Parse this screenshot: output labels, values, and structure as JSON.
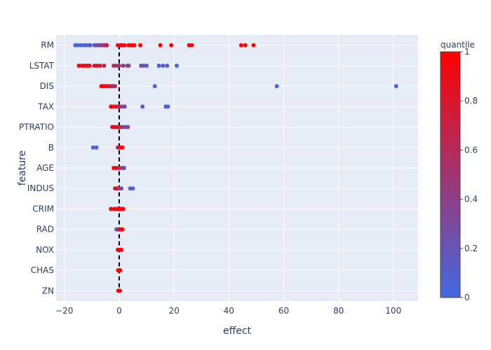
{
  "chart_data": {
    "type": "scatter",
    "xlabel": "effect",
    "ylabel": "feature",
    "xlim": [
      -23,
      109
    ],
    "x_ticks": [
      -20,
      0,
      20,
      40,
      60,
      80,
      100
    ],
    "categories": [
      "RM",
      "LSTAT",
      "DIS",
      "TAX",
      "PTRATIO",
      "B",
      "AGE",
      "INDUS",
      "CRIM",
      "RAD",
      "NOX",
      "CHAS",
      "ZN"
    ],
    "reference_line": {
      "x": 0,
      "style": "dashed",
      "color": "#000000"
    },
    "grid": true,
    "colorbar": {
      "title": "quantile",
      "range": [
        0,
        1
      ],
      "ticks": [
        "0",
        "0.2",
        "0.4",
        "0.6",
        "0.8",
        "1"
      ],
      "low_color": "#4169e1",
      "high_color": "#ff0000"
    },
    "points": [
      {
        "feature": "RM",
        "values": [
          [
            -16,
            0.02
          ],
          [
            -15.3,
            0.04
          ],
          [
            -14.2,
            0.06
          ],
          [
            -13,
            0.07
          ],
          [
            -12,
            0.08
          ],
          [
            -11,
            0.09
          ],
          [
            -10.5,
            0.1
          ],
          [
            -9,
            0.15
          ],
          [
            -8.3,
            0.2
          ],
          [
            -7.6,
            0.25
          ],
          [
            -7,
            0.3
          ],
          [
            -6.2,
            0.4
          ],
          [
            -5.5,
            0.5
          ],
          [
            -5,
            0.6
          ],
          [
            -4.5,
            0.7
          ],
          [
            -0.5,
            0.88
          ],
          [
            0.5,
            0.9
          ],
          [
            1,
            0.92
          ],
          [
            2,
            0.94
          ],
          [
            3.5,
            0.95
          ],
          [
            4.5,
            0.96
          ],
          [
            5.5,
            0.97
          ],
          [
            7.7,
            0.98
          ],
          [
            15,
            0.985
          ],
          [
            19,
            0.99
          ],
          [
            25.5,
            0.993
          ],
          [
            26.5,
            0.995
          ],
          [
            44.5,
            0.997
          ],
          [
            46,
            0.998
          ],
          [
            49,
            1.0
          ]
        ]
      },
      {
        "feature": "LSTAT",
        "values": [
          [
            -14.7,
            0.98
          ],
          [
            -13.5,
            0.96
          ],
          [
            -12.5,
            0.95
          ],
          [
            -11.5,
            0.93
          ],
          [
            -10.8,
            0.9
          ],
          [
            -9,
            0.85
          ],
          [
            -8,
            0.8
          ],
          [
            -7,
            0.75
          ],
          [
            -5.5,
            0.7
          ],
          [
            -2,
            0.6
          ],
          [
            -1,
            0.55
          ],
          [
            0,
            0.5
          ],
          [
            1.5,
            0.45
          ],
          [
            3,
            0.35
          ],
          [
            3.5,
            0.3
          ],
          [
            8,
            0.25
          ],
          [
            9,
            0.2
          ],
          [
            10,
            0.15
          ],
          [
            14.5,
            0.1
          ],
          [
            16,
            0.08
          ],
          [
            17.5,
            0.06
          ],
          [
            21,
            0.02
          ]
        ]
      },
      {
        "feature": "DIS",
        "values": [
          [
            -6.5,
            0.98
          ],
          [
            -5.8,
            0.96
          ],
          [
            -5,
            0.93
          ],
          [
            -4.2,
            0.88
          ],
          [
            -3.5,
            0.8
          ],
          [
            -2.8,
            0.7
          ],
          [
            -2.2,
            0.6
          ],
          [
            -1.5,
            0.5
          ],
          [
            13,
            0.05
          ],
          [
            57.5,
            0.02
          ],
          [
            101,
            0.01
          ]
        ]
      },
      {
        "feature": "TAX",
        "values": [
          [
            -3,
            0.95
          ],
          [
            -2,
            0.9
          ],
          [
            -1,
            0.8
          ],
          [
            0,
            0.6
          ],
          [
            1,
            0.4
          ],
          [
            2,
            0.3
          ],
          [
            8.5,
            0.1
          ],
          [
            17,
            0.05
          ],
          [
            17.8,
            0.02
          ]
        ]
      },
      {
        "feature": "PTRATIO",
        "values": [
          [
            -2.5,
            0.95
          ],
          [
            -1.5,
            0.9
          ],
          [
            -0.5,
            0.8
          ],
          [
            0.5,
            0.6
          ],
          [
            1.5,
            0.4
          ],
          [
            2.5,
            0.3
          ],
          [
            3.2,
            0.25
          ]
        ]
      },
      {
        "feature": "B",
        "values": [
          [
            -9.5,
            0.05
          ],
          [
            -8.3,
            0.08
          ],
          [
            -0.5,
            0.6
          ],
          [
            0,
            0.8
          ],
          [
            0.5,
            0.9
          ],
          [
            1.2,
            0.95
          ]
        ]
      },
      {
        "feature": "AGE",
        "values": [
          [
            -2,
            0.95
          ],
          [
            -1,
            0.9
          ],
          [
            0,
            0.7
          ],
          [
            1,
            0.4
          ],
          [
            1.8,
            0.3
          ]
        ]
      },
      {
        "feature": "INDUS",
        "values": [
          [
            -1.5,
            0.9
          ],
          [
            -0.8,
            0.8
          ],
          [
            0,
            0.5
          ],
          [
            0.8,
            0.3
          ],
          [
            4,
            0.1
          ],
          [
            5,
            0.05
          ]
        ]
      },
      {
        "feature": "CRIM",
        "values": [
          [
            -3,
            0.98
          ],
          [
            -1.8,
            0.95
          ],
          [
            -1,
            0.9
          ],
          [
            -0.5,
            0.85
          ],
          [
            0,
            0.88
          ],
          [
            0.5,
            0.92
          ],
          [
            1,
            0.96
          ],
          [
            1.5,
            0.97
          ]
        ]
      },
      {
        "feature": "RAD",
        "values": [
          [
            -1,
            0.2
          ],
          [
            -0.3,
            0.5
          ],
          [
            0.3,
            0.9
          ],
          [
            0.8,
            0.95
          ],
          [
            1.2,
            0.97
          ]
        ]
      },
      {
        "feature": "NOX",
        "values": [
          [
            -0.5,
            0.97
          ],
          [
            0,
            0.95
          ],
          [
            0.5,
            0.96
          ],
          [
            0.8,
            0.98
          ]
        ]
      },
      {
        "feature": "CHAS",
        "values": [
          [
            -0.4,
            0.96
          ],
          [
            0,
            0.95
          ],
          [
            0.4,
            0.97
          ]
        ]
      },
      {
        "feature": "ZN",
        "values": [
          [
            -0.3,
            0.96
          ],
          [
            0,
            0.95
          ],
          [
            0.3,
            0.97
          ]
        ]
      }
    ]
  }
}
